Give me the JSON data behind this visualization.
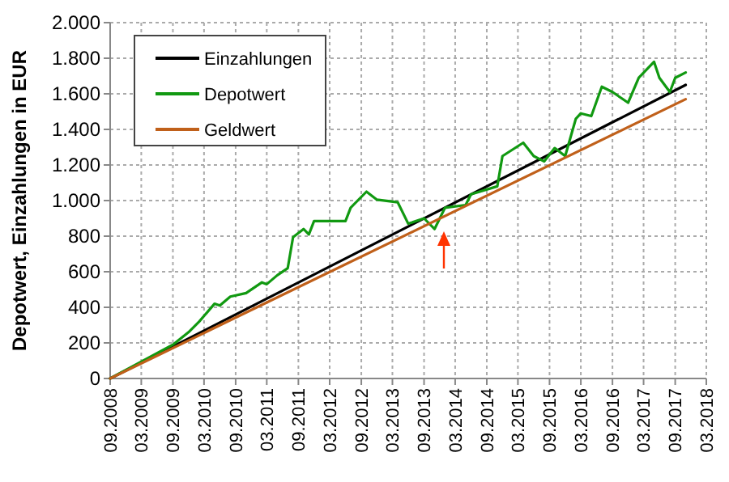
{
  "chart_data": {
    "type": "line",
    "ylabel": "Depotwert, Einzahlungen in EUR",
    "xlim": [
      "2008-09",
      "2018-03"
    ],
    "xticks": [
      {
        "value": "2008-09",
        "label": "09.2008"
      },
      {
        "value": "2009-03",
        "label": "03.2009"
      },
      {
        "value": "2009-09",
        "label": "09.2009"
      },
      {
        "value": "2010-03",
        "label": "03.2010"
      },
      {
        "value": "2010-09",
        "label": "09.2010"
      },
      {
        "value": "2011-03",
        "label": "03.2011"
      },
      {
        "value": "2011-09",
        "label": "09.2011"
      },
      {
        "value": "2012-03",
        "label": "03.2012"
      },
      {
        "value": "2012-09",
        "label": "09.2012"
      },
      {
        "value": "2013-03",
        "label": "03.2013"
      },
      {
        "value": "2013-09",
        "label": "09.2013"
      },
      {
        "value": "2014-03",
        "label": "03.2014"
      },
      {
        "value": "2014-09",
        "label": "09.2014"
      },
      {
        "value": "2015-03",
        "label": "03.2015"
      },
      {
        "value": "2015-09",
        "label": "09.2015"
      },
      {
        "value": "2016-03",
        "label": "03.2016"
      },
      {
        "value": "2016-09",
        "label": "09.2016"
      },
      {
        "value": "2017-03",
        "label": "03.2017"
      },
      {
        "value": "2017-09",
        "label": "09.2017"
      },
      {
        "value": "2018-03",
        "label": "03.2018"
      }
    ],
    "ylim": [
      0,
      2000
    ],
    "yticks": [
      0,
      200,
      400,
      600,
      800,
      {
        "value": 1000,
        "label": "1.000"
      },
      {
        "value": 1200,
        "label": "1.200"
      },
      {
        "value": 1400,
        "label": "1.400"
      },
      {
        "value": 1600,
        "label": "1.600"
      },
      {
        "value": 1800,
        "label": "1.800"
      },
      {
        "value": 2000,
        "label": "2.000"
      }
    ],
    "grid": true,
    "legend": "top left",
    "line_style": "solid",
    "marker": "none",
    "series": [
      {
        "name": "Einzahlungen",
        "color": "#000000",
        "x": [
          "2008-09",
          "2017-11"
        ],
        "values": [
          0,
          1650
        ]
      },
      {
        "name": "Depotwert",
        "color": "#119911",
        "x": [
          "2008-09",
          "2009-09",
          "2009-12",
          "2010-02",
          "2010-05",
          "2010-06",
          "2010-08",
          "2010-11",
          "2011-02",
          "2011-03",
          "2011-05",
          "2011-07",
          "2011-08",
          "2011-10",
          "2011-11",
          "2011-12",
          "2012-06",
          "2012-07",
          "2012-10",
          "2012-12",
          "2013-04",
          "2013-06",
          "2013-09",
          "2013-11",
          "2014-01",
          "2014-05",
          "2014-06",
          "2014-11",
          "2014-12",
          "2015-04",
          "2015-06",
          "2015-08",
          "2015-10",
          "2015-12",
          "2016-02",
          "2016-03",
          "2016-05",
          "2016-07",
          "2016-09",
          "2016-12",
          "2017-02",
          "2017-05",
          "2017-06",
          "2017-08",
          "2017-09",
          "2017-11"
        ],
        "values": [
          0,
          190,
          260,
          320,
          420,
          410,
          460,
          480,
          540,
          530,
          580,
          620,
          794,
          840,
          810,
          885,
          885,
          960,
          1050,
          1005,
          990,
          870,
          900,
          840,
          960,
          975,
          1035,
          1080,
          1250,
          1325,
          1250,
          1220,
          1295,
          1250,
          1460,
          1490,
          1475,
          1640,
          1610,
          1550,
          1690,
          1780,
          1690,
          1610,
          1690,
          1720
        ]
      },
      {
        "name": "Geldwert",
        "color": "#c0601a",
        "x": [
          "2008-09",
          "2017-11"
        ],
        "values": [
          0,
          1570
        ]
      }
    ]
  }
}
